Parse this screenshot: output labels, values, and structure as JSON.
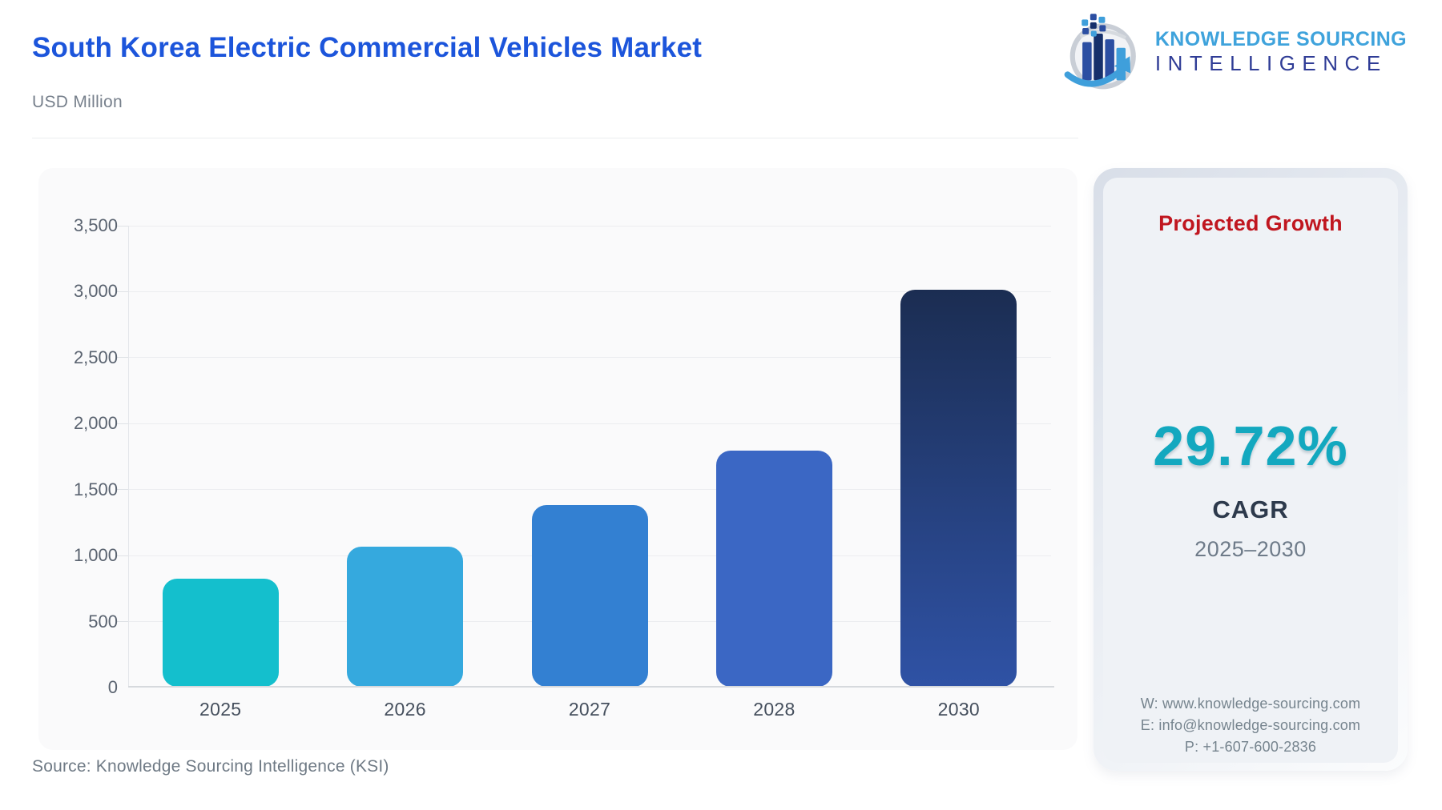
{
  "header": {
    "title": "South Korea Electric Commercial Vehicles Market",
    "title_color": "#1C55DB",
    "subtitle": "USD Million",
    "logo": {
      "line1": "KNOWLEDGE SOURCING",
      "line2": "INTELLIGENCE"
    }
  },
  "chart_data": {
    "type": "bar",
    "title": "South Korea Electric Commercial Vehicles Market",
    "ylabel": "USD Million",
    "xlabel": "",
    "categories": [
      "2025",
      "2026",
      "2027",
      "2028",
      "2030"
    ],
    "values": [
      820,
      1064,
      1380,
      1790,
      3012
    ],
    "ylim": [
      0,
      3500
    ],
    "ytick_interval": 500,
    "yticks": [
      "3,500",
      "3,000",
      "2,500",
      "2,000",
      "1,500",
      "1,000",
      "500",
      "0"
    ],
    "grid": true,
    "legend": false,
    "bar_colors": [
      "#14BFCD",
      "#35A9DE",
      "#3380D2",
      "#3B67C4",
      null
    ],
    "bar_gradient_2030": [
      "#1B2D52",
      "#2F52A5"
    ]
  },
  "growth_panel": {
    "heading": "Projected Growth",
    "heading_color": "#C0161F",
    "cagr_value": "29.72%",
    "cagr_color": "#13A8BF",
    "cagr_label": "CAGR",
    "period": "2025–2030",
    "contact": {
      "website": "W: www.knowledge-sourcing.com",
      "email": "E: info@knowledge-sourcing.com",
      "phone": "P: +1-607-600-2836"
    }
  },
  "footer": {
    "source": "Source: Knowledge Sourcing Intelligence (KSI)"
  }
}
